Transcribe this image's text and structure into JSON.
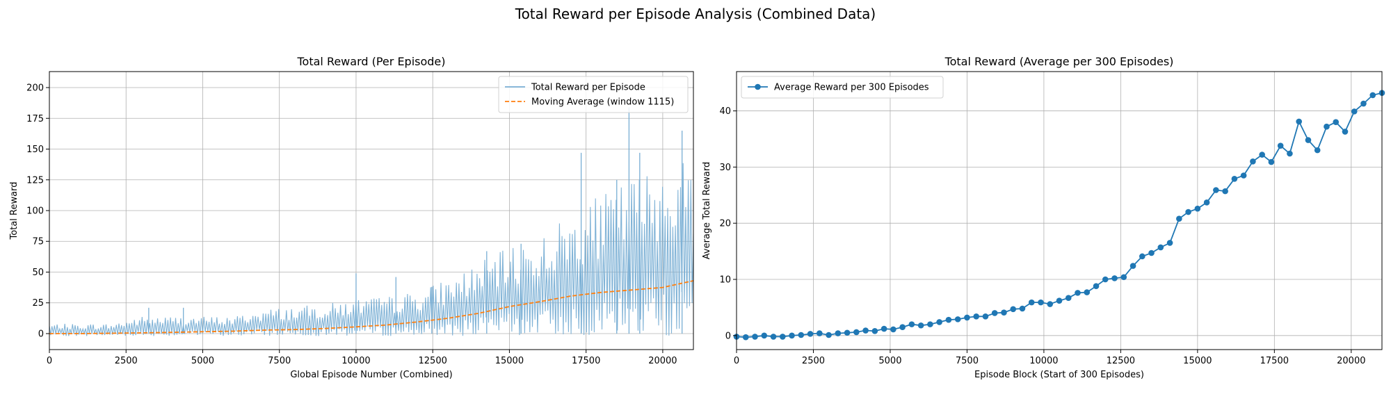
{
  "figure": {
    "title": "Total Reward per Episode Analysis (Combined Data)"
  },
  "colors": {
    "series_blue": "#1f77b4",
    "raw_blue": "#78aed4",
    "moving_avg_orange": "#ff7f0e",
    "grid": "#b0b0b0"
  },
  "chart_data": [
    {
      "type": "line",
      "title": "Total Reward (Per Episode)",
      "xlabel": "Global Episode Number (Combined)",
      "ylabel": "Total Reward",
      "xlim": [
        0,
        21000
      ],
      "ylim": [
        -13,
        213
      ],
      "xticks": [
        0,
        2500,
        5000,
        7500,
        10000,
        12500,
        15000,
        17500,
        20000
      ],
      "yticks": [
        0,
        25,
        50,
        75,
        100,
        125,
        150,
        175,
        200
      ],
      "grid": true,
      "legend_position": "top-right",
      "series": [
        {
          "name": "Total Reward per Episode",
          "style": "solid",
          "envelope_x": [
            0,
            1000,
            2000,
            3000,
            4000,
            5000,
            6000,
            7000,
            8000,
            9000,
            10000,
            11000,
            12000,
            13000,
            14000,
            15000,
            16000,
            17000,
            18000,
            19000,
            20000,
            21000
          ],
          "envelope_max": [
            8,
            8,
            8,
            14,
            14,
            14,
            14,
            20,
            22,
            24,
            29,
            30,
            35,
            45,
            58,
            70,
            80,
            98,
            113,
            128,
            140,
            146
          ],
          "envelope_min": [
            -2,
            -2,
            -2,
            -2,
            -2,
            -2,
            -2,
            -2,
            -2,
            -2,
            -2,
            -2,
            -2,
            -2,
            -2,
            -2,
            -2,
            -2,
            -2,
            -2,
            -2,
            -2
          ],
          "spikes": [
            [
              3240,
              21
            ],
            [
              4370,
              21
            ],
            [
              10000,
              49
            ],
            [
              11300,
              46
            ],
            [
              12470,
              38
            ],
            [
              14260,
              67
            ],
            [
              15380,
              73
            ],
            [
              17340,
              147
            ],
            [
              18500,
              125
            ],
            [
              18900,
              184
            ],
            [
              19250,
              147
            ],
            [
              20630,
              165
            ]
          ]
        },
        {
          "name": "Moving Average (window 1115)",
          "style": "dashed",
          "x": [
            0,
            1000,
            2000,
            3000,
            4000,
            5000,
            6000,
            7000,
            8000,
            9000,
            10000,
            11000,
            12000,
            13000,
            14000,
            15000,
            16000,
            17000,
            18000,
            19000,
            20000,
            21000
          ],
          "values": [
            0,
            0,
            0.3,
            0.6,
            1.0,
            1.5,
            2.0,
            2.8,
            3.3,
            4.2,
            5.5,
            7.0,
            9.5,
            12.5,
            16.5,
            22.0,
            26.0,
            30.5,
            33.5,
            35.5,
            37.5,
            43.0
          ]
        }
      ]
    },
    {
      "type": "line",
      "title": "Total Reward (Average per 300 Episodes)",
      "xlabel": "Episode Block (Start of 300 Episodes)",
      "ylabel": "Average Total Reward",
      "xlim": [
        0,
        21000
      ],
      "ylim": [
        -2.5,
        47
      ],
      "xticks": [
        0,
        2500,
        5000,
        7500,
        10000,
        12500,
        15000,
        17500,
        20000
      ],
      "yticks": [
        0,
        10,
        20,
        30,
        40
      ],
      "grid": true,
      "legend_position": "top-left",
      "series": [
        {
          "name": "Average Reward per 300 Episodes",
          "style": "solid-marker",
          "x": [
            0,
            300,
            600,
            900,
            1200,
            1500,
            1800,
            2100,
            2400,
            2700,
            3000,
            3300,
            3600,
            3900,
            4200,
            4500,
            4800,
            5100,
            5400,
            5700,
            6000,
            6300,
            6600,
            6900,
            7200,
            7500,
            7800,
            8100,
            8400,
            8700,
            9000,
            9300,
            9600,
            9900,
            10200,
            10500,
            10800,
            11100,
            11400,
            11700,
            12000,
            12300,
            12600,
            12900,
            13200,
            13500,
            13800,
            14100,
            14400,
            14700,
            15000,
            15300,
            15600,
            15900,
            16200,
            16500,
            16800,
            17100,
            17400,
            17700,
            18000,
            18300,
            18600,
            18900,
            19200,
            19500,
            19800,
            20100,
            20400,
            20700,
            21000
          ],
          "values": [
            -0.2,
            -0.3,
            -0.2,
            0.0,
            -0.2,
            -0.2,
            0.0,
            0.1,
            0.3,
            0.4,
            0.1,
            0.4,
            0.5,
            0.6,
            0.9,
            0.8,
            1.2,
            1.1,
            1.5,
            2.0,
            1.8,
            2.0,
            2.4,
            2.8,
            2.9,
            3.2,
            3.4,
            3.4,
            4.0,
            4.1,
            4.7,
            4.8,
            5.9,
            5.9,
            5.6,
            6.2,
            6.7,
            7.6,
            7.7,
            8.8,
            10.0,
            10.2,
            10.4,
            12.4,
            14.1,
            14.7,
            15.7,
            16.5,
            20.8,
            22.0,
            22.6,
            23.7,
            25.9,
            25.7,
            27.9,
            28.5,
            31.0,
            32.2,
            30.9,
            33.8,
            32.4,
            38.1,
            34.8,
            33.0,
            37.2,
            38.0,
            36.3,
            39.9,
            41.3,
            42.8,
            43.2
          ]
        }
      ]
    }
  ]
}
